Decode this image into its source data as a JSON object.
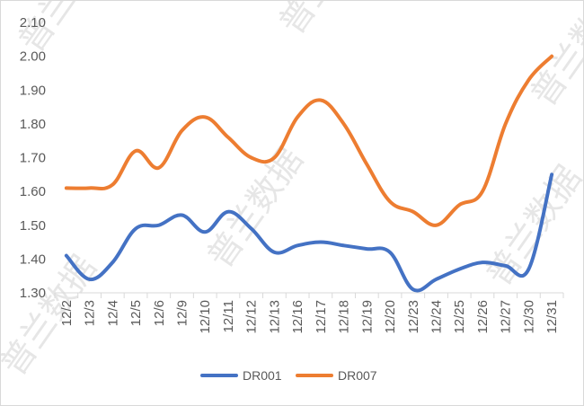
{
  "chart_data": {
    "type": "line",
    "title": "",
    "xlabel": "",
    "ylabel": "",
    "categories": [
      "12/2",
      "12/3",
      "12/4",
      "12/5",
      "12/6",
      "12/9",
      "12/10",
      "12/11",
      "12/12",
      "12/13",
      "12/16",
      "12/17",
      "12/18",
      "12/19",
      "12/20",
      "12/23",
      "12/24",
      "12/25",
      "12/26",
      "12/27",
      "12/30",
      "12/31"
    ],
    "ylim": [
      1.3,
      2.1
    ],
    "yticks": [
      "1.30",
      "1.40",
      "1.50",
      "1.60",
      "1.70",
      "1.80",
      "1.90",
      "2.00",
      "2.10"
    ],
    "grid": false,
    "legend_position": "bottom",
    "series": [
      {
        "name": "DR001",
        "color": "#4472C4",
        "values": [
          1.41,
          1.34,
          1.39,
          1.49,
          1.5,
          1.53,
          1.48,
          1.54,
          1.49,
          1.42,
          1.44,
          1.45,
          1.44,
          1.43,
          1.42,
          1.31,
          1.34,
          1.37,
          1.39,
          1.38,
          1.37,
          1.65
        ]
      },
      {
        "name": "DR007",
        "color": "#ED7D31",
        "values": [
          1.61,
          1.61,
          1.62,
          1.72,
          1.67,
          1.78,
          1.82,
          1.76,
          1.7,
          1.7,
          1.82,
          1.87,
          1.8,
          1.68,
          1.57,
          1.54,
          1.5,
          1.56,
          1.6,
          1.8,
          1.93,
          2.0
        ]
      }
    ]
  },
  "watermark": {
    "text": "普兰数据",
    "color": "#e6e6e6"
  }
}
